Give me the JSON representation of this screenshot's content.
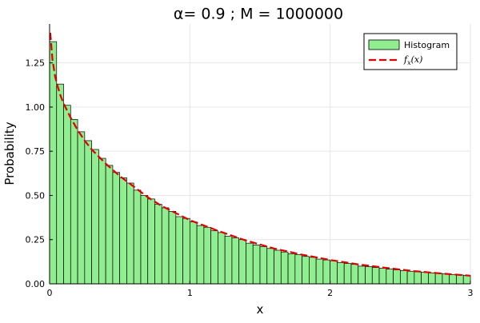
{
  "chart_data": {
    "type": "bar",
    "title": "α= 0.9   ;  M = 1000000",
    "xlabel": "x",
    "ylabel": "Probability",
    "xlim": [
      0,
      3
    ],
    "ylim": [
      0,
      1.47
    ],
    "grid": true,
    "legend_placement": "top-right",
    "x_ticks": [
      "0",
      "1",
      "2",
      "3"
    ],
    "x_tick_values": [
      0,
      1,
      2,
      3
    ],
    "y_ticks": [
      "0.00",
      "0.25",
      "0.50",
      "0.75",
      "1.00",
      "1.25"
    ],
    "y_tick_values": [
      0,
      0.25,
      0.5,
      0.75,
      1.0,
      1.25
    ],
    "series": [
      {
        "name": "Histogram",
        "kind": "histogram",
        "color": "#90ee90",
        "bin_width": 0.05,
        "bin_start": 0,
        "values": [
          1.37,
          1.13,
          1.01,
          0.93,
          0.86,
          0.81,
          0.76,
          0.71,
          0.67,
          0.63,
          0.6,
          0.57,
          0.53,
          0.5,
          0.48,
          0.45,
          0.43,
          0.41,
          0.38,
          0.37,
          0.35,
          0.33,
          0.32,
          0.3,
          0.29,
          0.27,
          0.26,
          0.25,
          0.23,
          0.22,
          0.21,
          0.2,
          0.19,
          0.18,
          0.17,
          0.165,
          0.155,
          0.15,
          0.14,
          0.135,
          0.13,
          0.12,
          0.115,
          0.11,
          0.1,
          0.097,
          0.092,
          0.088,
          0.083,
          0.079,
          0.075,
          0.071,
          0.068,
          0.065,
          0.062,
          0.059,
          0.056,
          0.053,
          0.05,
          0.048
        ]
      },
      {
        "name": "f_x(x)",
        "kind": "density",
        "color": "#e00000",
        "x": [
          0.005,
          0.01,
          0.02,
          0.04,
          0.06,
          0.08,
          0.1,
          0.15,
          0.2,
          0.25,
          0.3,
          0.4,
          0.5,
          0.6,
          0.7,
          0.8,
          0.9,
          1.0,
          1.2,
          1.4,
          1.6,
          1.8,
          2.0,
          2.2,
          2.4,
          2.6,
          2.8,
          3.0
        ],
        "y": [
          1.42,
          1.37,
          1.27,
          1.17,
          1.11,
          1.06,
          1.02,
          0.94,
          0.87,
          0.81,
          0.76,
          0.68,
          0.61,
          0.55,
          0.49,
          0.44,
          0.4,
          0.36,
          0.3,
          0.245,
          0.2,
          0.165,
          0.135,
          0.11,
          0.09,
          0.072,
          0.058,
          0.046
        ]
      }
    ],
    "legend": {
      "histogram_label": "Histogram",
      "density_label_base": "f",
      "density_label_sub": "x",
      "density_label_arg": "(x)"
    }
  }
}
